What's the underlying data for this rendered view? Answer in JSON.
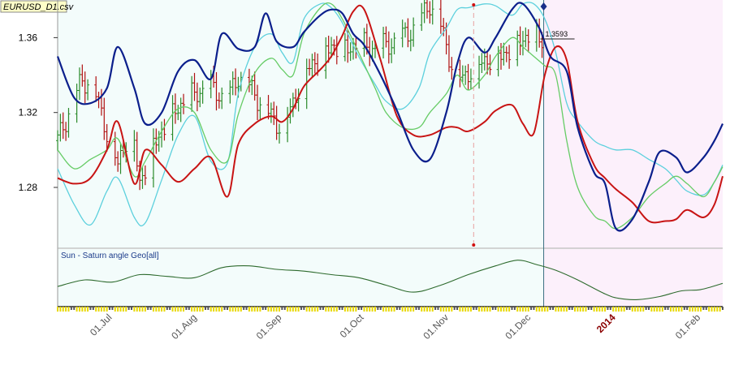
{
  "file_title": "EURUSD_D1.csv",
  "indicator_title": "Sun - Saturn angle Geo[all]",
  "current_price_label": "1.3593",
  "colors": {
    "bg_history": "#f3fcfb",
    "bg_forecast": "#fcf0fb",
    "bar_up": "#2a8a2a",
    "bar_down": "#b01010",
    "line_dark_blue": "#0b1f8c",
    "line_red": "#c81414",
    "line_green": "#66cc66",
    "line_cyan": "#5cd0dd",
    "indicator": "#2d6a2d",
    "tick_yellow": "#e8d800"
  },
  "chart_data": {
    "type": "line",
    "title": "",
    "xlabel": "",
    "ylabel": "",
    "ylim": [
      1.2475,
      1.3775
    ],
    "yticks": [
      {
        "value": 1.28,
        "label": "1.28"
      },
      {
        "value": 1.32,
        "label": "1.32"
      },
      {
        "value": 1.36,
        "label": "1.36"
      }
    ],
    "xticks": [
      {
        "day": 20,
        "label": "01.Jul",
        "year": false
      },
      {
        "day": 51,
        "label": "01.Aug",
        "year": false
      },
      {
        "day": 82,
        "label": "01.Sep",
        "year": false
      },
      {
        "day": 112,
        "label": "01.Oct",
        "year": false
      },
      {
        "day": 143,
        "label": "01.Nov",
        "year": false
      },
      {
        "day": 173,
        "label": "01.Dec",
        "year": false
      },
      {
        "day": 204,
        "label": "2014",
        "year": true
      },
      {
        "day": 235,
        "label": "01.Feb",
        "year": false
      }
    ],
    "xlim": [
      0,
      243
    ],
    "last_bar_day": 177,
    "marker_day": 152,
    "ohlc": {
      "key_days": [
        0,
        8,
        12,
        18,
        22,
        27,
        30,
        34,
        38,
        44,
        50,
        56,
        62,
        66,
        72,
        78,
        82,
        86,
        90,
        96,
        100,
        104,
        110,
        116,
        120,
        126,
        132,
        136,
        140,
        144,
        148,
        152,
        158,
        164,
        170,
        174,
        177
      ],
      "key_closes": [
        1.305,
        1.335,
        1.339,
        1.31,
        1.292,
        1.315,
        1.282,
        1.3,
        1.31,
        1.323,
        1.33,
        1.334,
        1.326,
        1.34,
        1.33,
        1.318,
        1.312,
        1.325,
        1.342,
        1.35,
        1.356,
        1.353,
        1.357,
        1.354,
        1.356,
        1.36,
        1.368,
        1.379,
        1.366,
        1.346,
        1.338,
        1.345,
        1.349,
        1.352,
        1.36,
        1.361,
        1.359
      ]
    },
    "series": [
      {
        "name": "",
        "color": "#0b1f8c",
        "x": [
          0,
          6,
          12,
          18,
          22,
          28,
          32,
          38,
          44,
          50,
          56,
          60,
          66,
          72,
          76,
          80,
          86,
          90,
          96,
          100,
          104,
          108,
          112,
          118,
          124,
          130,
          136,
          142,
          146,
          150,
          156,
          160,
          166,
          170,
          176,
          180,
          186,
          190,
          196,
          200,
          204,
          210,
          216,
          220,
          226,
          230,
          236,
          240,
          243
        ],
        "y": [
          1.35,
          1.328,
          1.325,
          1.333,
          1.355,
          1.333,
          1.314,
          1.32,
          1.342,
          1.348,
          1.338,
          1.362,
          1.354,
          1.355,
          1.373,
          1.358,
          1.355,
          1.363,
          1.372,
          1.375,
          1.373,
          1.362,
          1.356,
          1.34,
          1.321,
          1.3,
          1.295,
          1.32,
          1.346,
          1.36,
          1.352,
          1.36,
          1.375,
          1.378,
          1.365,
          1.35,
          1.342,
          1.312,
          1.288,
          1.282,
          1.258,
          1.263,
          1.283,
          1.299,
          1.296,
          1.288,
          1.296,
          1.305,
          1.314
        ]
      },
      {
        "name": "",
        "color": "#c81414",
        "x": [
          0,
          6,
          12,
          18,
          22,
          28,
          32,
          38,
          44,
          50,
          56,
          62,
          66,
          72,
          78,
          82,
          86,
          90,
          96,
          100,
          104,
          108,
          112,
          118,
          124,
          130,
          136,
          142,
          146,
          150,
          156,
          160,
          166,
          170,
          174,
          178,
          182,
          186,
          190,
          196,
          200,
          204,
          210,
          216,
          222,
          226,
          230,
          236,
          240,
          243
        ],
        "y": [
          1.285,
          1.282,
          1.285,
          1.3,
          1.315,
          1.282,
          1.3,
          1.292,
          1.283,
          1.29,
          1.296,
          1.275,
          1.303,
          1.314,
          1.318,
          1.315,
          1.322,
          1.334,
          1.343,
          1.35,
          1.361,
          1.374,
          1.375,
          1.348,
          1.318,
          1.308,
          1.308,
          1.312,
          1.312,
          1.31,
          1.315,
          1.321,
          1.324,
          1.314,
          1.309,
          1.34,
          1.355,
          1.348,
          1.315,
          1.292,
          1.285,
          1.279,
          1.272,
          1.262,
          1.262,
          1.263,
          1.268,
          1.264,
          1.271,
          1.286
        ]
      },
      {
        "name": "",
        "color": "#66cc66",
        "x": [
          0,
          6,
          12,
          18,
          22,
          28,
          32,
          38,
          44,
          50,
          56,
          62,
          66,
          72,
          78,
          82,
          86,
          90,
          96,
          100,
          104,
          110,
          116,
          120,
          126,
          132,
          136,
          142,
          146,
          150,
          156,
          160,
          166,
          170,
          174,
          178,
          182,
          186,
          190,
          196,
          200,
          204,
          210,
          216,
          222,
          226,
          230,
          236,
          240,
          243
        ],
        "y": [
          1.3,
          1.29,
          1.295,
          1.3,
          1.306,
          1.286,
          1.294,
          1.31,
          1.322,
          1.32,
          1.3,
          1.294,
          1.319,
          1.341,
          1.349,
          1.343,
          1.34,
          1.362,
          1.376,
          1.378,
          1.37,
          1.352,
          1.333,
          1.32,
          1.312,
          1.312,
          1.32,
          1.33,
          1.34,
          1.332,
          1.34,
          1.35,
          1.36,
          1.355,
          1.35,
          1.345,
          1.34,
          1.305,
          1.28,
          1.265,
          1.262,
          1.258,
          1.264,
          1.275,
          1.282,
          1.286,
          1.282,
          1.275,
          1.283,
          1.291
        ]
      },
      {
        "name": "",
        "color": "#5cd0dd",
        "x": [
          0,
          6,
          12,
          18,
          22,
          28,
          32,
          38,
          44,
          50,
          56,
          62,
          66,
          72,
          78,
          82,
          86,
          90,
          96,
          100,
          104,
          110,
          116,
          120,
          126,
          132,
          136,
          142,
          146,
          150,
          156,
          160,
          166,
          170,
          174,
          178,
          182,
          186,
          190,
          196,
          200,
          204,
          210,
          216,
          222,
          226,
          230,
          236,
          240,
          243
        ],
        "y": [
          1.29,
          1.271,
          1.26,
          1.278,
          1.285,
          1.264,
          1.261,
          1.284,
          1.308,
          1.318,
          1.294,
          1.293,
          1.33,
          1.355,
          1.362,
          1.352,
          1.347,
          1.37,
          1.378,
          1.376,
          1.368,
          1.35,
          1.335,
          1.326,
          1.322,
          1.333,
          1.352,
          1.365,
          1.375,
          1.376,
          1.378,
          1.377,
          1.372,
          1.378,
          1.378,
          1.37,
          1.352,
          1.325,
          1.315,
          1.305,
          1.302,
          1.3,
          1.3,
          1.295,
          1.29,
          1.284,
          1.278,
          1.276,
          1.283,
          1.292
        ]
      }
    ],
    "indicator": {
      "name": "Sun - Saturn angle Geo[all]",
      "x": [
        0,
        10,
        20,
        30,
        40,
        50,
        60,
        70,
        80,
        90,
        100,
        110,
        120,
        130,
        140,
        150,
        160,
        168,
        175,
        182,
        190,
        200,
        205,
        212,
        220,
        228,
        235,
        243
      ],
      "y": [
        0.35,
        0.5,
        0.45,
        0.62,
        0.58,
        0.55,
        0.78,
        0.82,
        0.74,
        0.7,
        0.62,
        0.55,
        0.38,
        0.22,
        0.38,
        0.62,
        0.82,
        0.95,
        0.85,
        0.72,
        0.5,
        0.18,
        0.08,
        0.05,
        0.12,
        0.25,
        0.28,
        0.42
      ]
    }
  }
}
